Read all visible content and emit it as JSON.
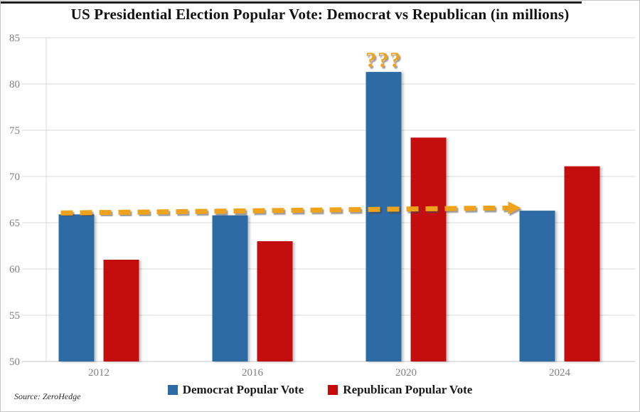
{
  "title": "US Presidential Election Popular Vote: Democrat vs Republican (in millions)",
  "source": "Source: ZeroHedge",
  "colors": {
    "democrat": "#2D6BA4",
    "republican": "#C40A0A",
    "annotation_orange": "#EFA21E",
    "gridline": "#D9D9D9",
    "baseline": "#C6C6C6",
    "axis_text": "#808080",
    "title_text": "#111111"
  },
  "legend": [
    {
      "label": "Democrat Popular Vote",
      "color_key": "democrat"
    },
    {
      "label": "Republican Popular Vote",
      "color_key": "republican"
    }
  ],
  "annotations": {
    "question_marks": {
      "text": "???",
      "above_year": "2020"
    },
    "dashed_arrow": {
      "from_year": "2012",
      "from_value": 65.9,
      "to_year": "2024",
      "to_value": 66.3
    }
  },
  "chart_data": {
    "type": "bar",
    "categories": [
      "2012",
      "2016",
      "2020",
      "2024"
    ],
    "series": [
      {
        "name": "Democrat Popular Vote",
        "color_key": "democrat",
        "values": [
          65.9,
          65.8,
          81.3,
          66.3
        ]
      },
      {
        "name": "Republican Popular Vote",
        "color_key": "republican",
        "values": [
          61.0,
          63.0,
          74.2,
          71.1
        ]
      }
    ],
    "title": "US Presidential Election Popular Vote: Democrat vs Republican (in millions)",
    "xlabel": "",
    "ylabel": "",
    "ylim": [
      50,
      85
    ],
    "ytick_step": 5,
    "grid": true,
    "legend_position": "bottom"
  }
}
